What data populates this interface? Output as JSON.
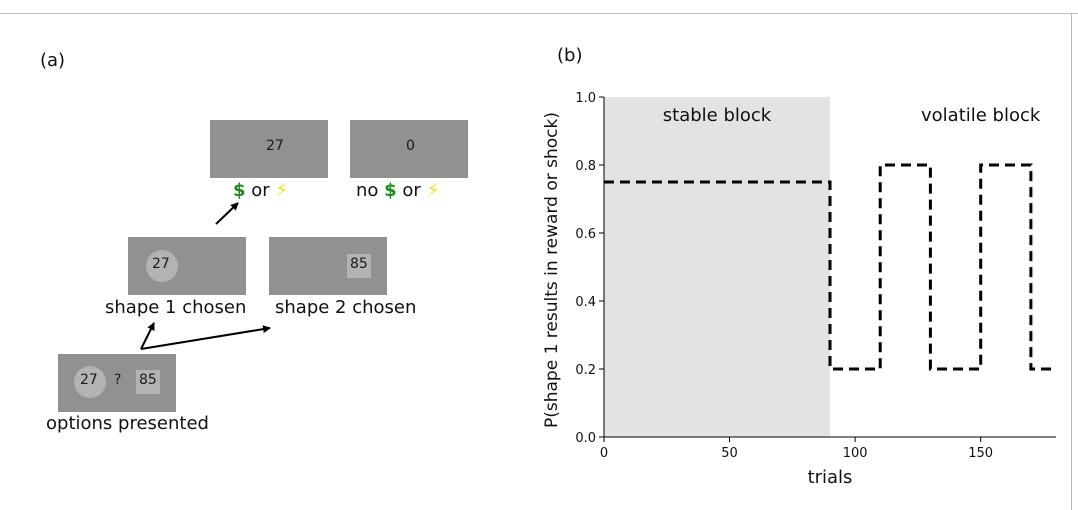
{
  "panel_a": {
    "label": "(a)",
    "outcome_reward_value": "27",
    "outcome_none_value": "0",
    "outcome_reward_caption": {
      "dollar": "$",
      "or": "or",
      "bolt": "⚡"
    },
    "outcome_none_caption": {
      "no": "no",
      "dollar": "$",
      "or": "or",
      "bolt": "⚡"
    },
    "shape1_value": "27",
    "shape2_value": "85",
    "shape1_caption": "shape 1 chosen",
    "shape2_caption": "shape 2 chosen",
    "options_left_value": "27",
    "options_question": "?",
    "options_right_value": "85",
    "options_caption": "options presented"
  },
  "panel_b": {
    "label": "(b)"
  },
  "chart_data": {
    "type": "line",
    "xlabel": "trials",
    "ylabel": "P(shape 1 results in reward or shock)",
    "xlim": [
      0,
      180
    ],
    "ylim": [
      0,
      1.0
    ],
    "xticks": [
      0,
      50,
      100,
      150
    ],
    "yticks": [
      0.0,
      0.2,
      0.4,
      0.6,
      0.8,
      1.0
    ],
    "ytick_labels": [
      "0.0",
      "0.2",
      "0.4",
      "0.6",
      "0.8",
      "1.0"
    ],
    "grid": false,
    "series": [
      {
        "style": "dashed",
        "color": "#000000",
        "x": [
          0,
          90,
          90,
          110,
          110,
          130,
          130,
          150,
          150,
          170,
          170,
          180
        ],
        "y": [
          0.75,
          0.75,
          0.2,
          0.2,
          0.8,
          0.8,
          0.2,
          0.2,
          0.8,
          0.8,
          0.2,
          0.2
        ]
      }
    ],
    "shaded_regions": [
      {
        "x0": 0,
        "x1": 90,
        "color": "#e3e3e3",
        "label": "stable block"
      }
    ],
    "annotations": [
      {
        "text": "stable block",
        "x": 45,
        "y": 0.93
      },
      {
        "text": "volatile block",
        "x": 150,
        "y": 0.93
      }
    ]
  }
}
